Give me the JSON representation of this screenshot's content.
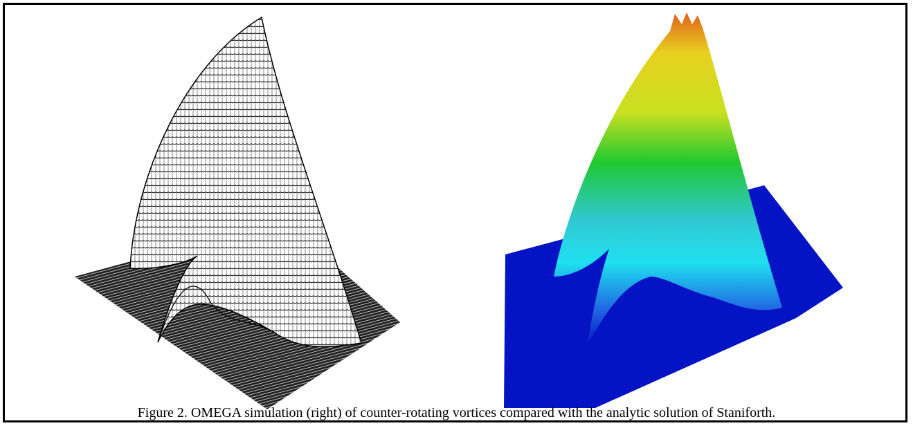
{
  "caption": "Figure 2.  OMEGA simulation (right) of counter-rotating vortices compared with the analytic solution of Staniforth."
}
